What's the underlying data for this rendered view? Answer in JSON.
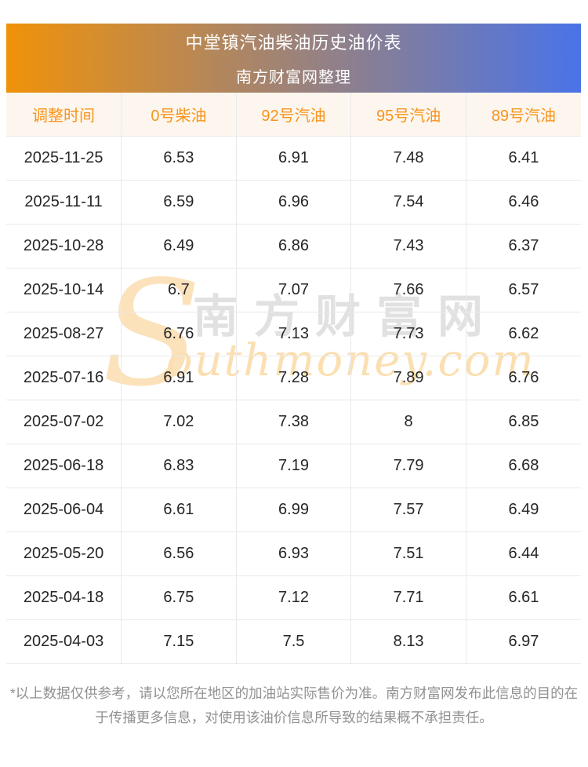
{
  "header": {
    "title": "中堂镇汽油柴油历史油价表",
    "subtitle": "南方财富网整理"
  },
  "table": {
    "columns": [
      "调整时间",
      "0号柴油",
      "92号汽油",
      "95号汽油",
      "89号汽油"
    ],
    "rows": [
      [
        "2025-11-25",
        "6.53",
        "6.91",
        "7.48",
        "6.41"
      ],
      [
        "2025-11-11",
        "6.59",
        "6.96",
        "7.54",
        "6.46"
      ],
      [
        "2025-10-28",
        "6.49",
        "6.86",
        "7.43",
        "6.37"
      ],
      [
        "2025-10-14",
        "6.7",
        "7.07",
        "7.66",
        "6.57"
      ],
      [
        "2025-08-27",
        "6.76",
        "7.13",
        "7.73",
        "6.62"
      ],
      [
        "2025-07-16",
        "6.91",
        "7.28",
        "7.89",
        "6.76"
      ],
      [
        "2025-07-02",
        "7.02",
        "7.38",
        "8",
        "6.85"
      ],
      [
        "2025-06-18",
        "6.83",
        "7.19",
        "7.79",
        "6.68"
      ],
      [
        "2025-06-04",
        "6.61",
        "6.99",
        "7.57",
        "6.49"
      ],
      [
        "2025-05-20",
        "6.56",
        "6.93",
        "7.51",
        "6.44"
      ],
      [
        "2025-04-18",
        "6.75",
        "7.12",
        "7.71",
        "6.61"
      ],
      [
        "2025-04-03",
        "7.15",
        "7.5",
        "8.13",
        "6.97"
      ]
    ]
  },
  "watermark": {
    "initial": "S",
    "chinese": "南方财富网",
    "english": "outhmoney.com"
  },
  "footer": {
    "disclaimer": "*以上数据仅供参考，请以您所在地区的加油站实际售价为准。南方财富网发布此信息的目的在于传播更多信息，对使用该油价信息所导致的结果概不承担责任。"
  },
  "colors": {
    "banner_gradient_start": "#F0920A",
    "banner_gradient_end": "#4A73E8",
    "header_row_bg": "#FDF6EE",
    "header_row_text": "#F7941E",
    "cell_text": "#262626",
    "border": "#E9E9EC",
    "disclaimer_text": "#919191",
    "watermark_peach": "#FBE2BB",
    "watermark_gray": "#DCDCDC"
  }
}
